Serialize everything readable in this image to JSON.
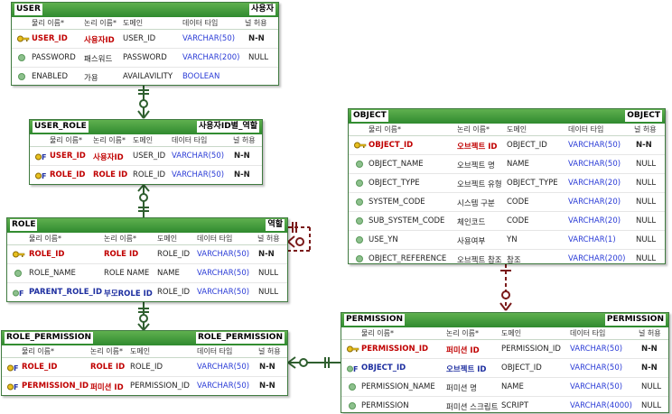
{
  "columns": [
    "물리 이름*",
    "논리 이름*",
    "도메인",
    "데이터 타입",
    "널 허용"
  ],
  "entities": {
    "user": {
      "title_left": "USER",
      "title_right": "사용자",
      "rows": [
        {
          "phys": "USER_ID",
          "logi": "사용자ID",
          "domain": "USER_ID",
          "type": "VARCHAR(50)",
          "null": "N-N"
        },
        {
          "phys": "PASSWORD",
          "logi": "패스워드",
          "domain": "PASSWORD",
          "type": "VARCHAR(200)",
          "null": "NULL"
        },
        {
          "phys": "ENABLED",
          "logi": "가용",
          "domain": "AVAILAVILITY",
          "type": "BOOLEAN",
          "null": ""
        }
      ]
    },
    "user_role": {
      "title_left": "USER_ROLE",
      "title_right": "사용자ID별_역할",
      "rows": [
        {
          "phys": "USER_ID",
          "logi": "사용자ID",
          "domain": "USER_ID",
          "type": "VARCHAR(50)",
          "null": "N-N"
        },
        {
          "phys": "ROLE_ID",
          "logi": "ROLE ID",
          "domain": "ROLE_ID",
          "type": "VARCHAR(50)",
          "null": "N-N"
        }
      ]
    },
    "role": {
      "title_left": "ROLE",
      "title_right": "역할",
      "rows": [
        {
          "phys": "ROLE_ID",
          "logi": "ROLE ID",
          "domain": "ROLE_ID",
          "type": "VARCHAR(50)",
          "null": "N-N"
        },
        {
          "phys": "ROLE_NAME",
          "logi": "ROLE NAME",
          "domain": "NAME",
          "type": "VARCHAR(50)",
          "null": "NULL"
        },
        {
          "phys": "PARENT_ROLE_ID",
          "logi": "부모ROLE ID",
          "domain": "ROLE_ID",
          "type": "VARCHAR(50)",
          "null": "NULL"
        }
      ]
    },
    "role_permission": {
      "title_left": "ROLE_PERMISSION",
      "title_right": "ROLE_PERMISSION",
      "rows": [
        {
          "phys": "ROLE_ID",
          "logi": "ROLE ID",
          "domain": "ROLE_ID",
          "type": "VARCHAR(50)",
          "null": "N-N"
        },
        {
          "phys": "PERMISSION_ID",
          "logi": "퍼미션 ID",
          "domain": "PERMISSION_ID",
          "type": "VARCHAR(50)",
          "null": "N-N"
        }
      ]
    },
    "object": {
      "title_left": "OBJECT",
      "title_right": "OBJECT",
      "rows": [
        {
          "phys": "OBJECT_ID",
          "logi": "오브젝트 ID",
          "domain": "OBJECT_ID",
          "type": "VARCHAR(50)",
          "null": "N-N"
        },
        {
          "phys": "OBJECT_NAME",
          "logi": "오브젝트 명",
          "domain": "NAME",
          "type": "VARCHAR(50)",
          "null": "NULL"
        },
        {
          "phys": "OBJECT_TYPE",
          "logi": "오브젝트 유형",
          "domain": "OBJECT_TYPE",
          "type": "VARCHAR(20)",
          "null": "NULL"
        },
        {
          "phys": "SYSTEM_CODE",
          "logi": "시스템 구분",
          "domain": "CODE",
          "type": "VARCHAR(20)",
          "null": "NULL"
        },
        {
          "phys": "SUB_SYSTEM_CODE",
          "logi": "체인코드",
          "domain": "CODE",
          "type": "VARCHAR(20)",
          "null": "NULL"
        },
        {
          "phys": "USE_YN",
          "logi": "사용여부",
          "domain": "YN",
          "type": "VARCHAR(1)",
          "null": "NULL"
        },
        {
          "phys": "OBJECT_REFERENCE",
          "logi": "오브젝트 참조",
          "domain": "참조",
          "type": "VARCHAR(200)",
          "null": "NULL"
        }
      ]
    },
    "permission": {
      "title_left": "PERMISSION",
      "title_right": "PERMISSION",
      "rows": [
        {
          "phys": "PERMISSION_ID",
          "logi": "퍼미션 ID",
          "domain": "PERMISSION_ID",
          "type": "VARCHAR(50)",
          "null": "N-N"
        },
        {
          "phys": "OBJECT_ID",
          "logi": "오브젝트 ID",
          "domain": "OBJECT_ID",
          "type": "VARCHAR(50)",
          "null": "N-N"
        },
        {
          "phys": "PERMISSION_NAME",
          "logi": "퍼미션 명",
          "domain": "NAME",
          "type": "VARCHAR(50)",
          "null": "NULL"
        },
        {
          "phys": "PERMISSION",
          "logi": "퍼미션 스크립트",
          "domain": "SCRIPT",
          "type": "VARCHAR(4000)",
          "null": "NULL"
        }
      ]
    }
  },
  "colors": {
    "header": "#2f8a2f",
    "pk": "#c00000",
    "fk": "#1e2fa0",
    "type": "#2a3bd6",
    "rel_green": "#2f5f2f",
    "rel_red": "#7a1a1a"
  }
}
